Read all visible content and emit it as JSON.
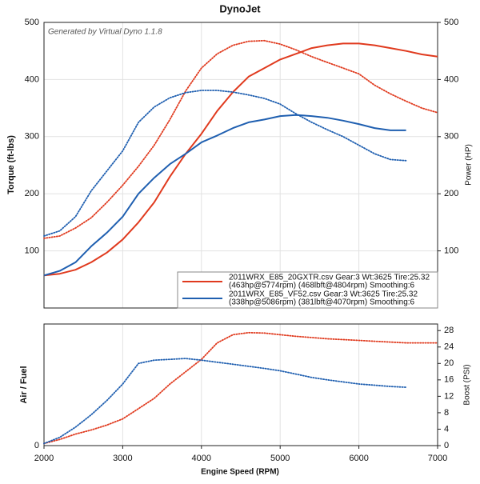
{
  "chart_data": [
    {
      "type": "line",
      "title": "DynoJet",
      "annotation": "Generated by Virtual Dyno 1.1.8",
      "ylabel": "Torque (ft-lbs)",
      "y2label": "Power (HP)",
      "xlim": [
        2000,
        7000
      ],
      "ylim": [
        0,
        500
      ],
      "yticks": [
        100,
        200,
        300,
        400,
        500
      ],
      "y2lim": [
        0,
        500
      ],
      "y2ticks": [
        100,
        200,
        300,
        400,
        500
      ],
      "grid": true,
      "legend_position": "lower right",
      "legend": [
        {
          "color": "#e03a1e",
          "lines": [
            "2011WRX_E85_20GXTR.csv Gear:3 Wt:3625 Tire:25.32",
            "(463hp@5774rpm) (468lbft@4804rpm) Smoothing:6"
          ]
        },
        {
          "color": "#1f5fb0",
          "lines": [
            "2011WRX_E85_VF52.csv Gear:3 Wt:3625 Tire:25.32",
            "(338hp@5086rpm) (381lbft@4070rpm) Smoothing:6"
          ]
        }
      ],
      "series": [
        {
          "color": "#e03a1e",
          "style": "solid",
          "axis": "y2",
          "x": [
            2000,
            2200,
            2400,
            2600,
            2800,
            3000,
            3200,
            3400,
            3600,
            3800,
            4000,
            4200,
            4400,
            4600,
            4800,
            5000,
            5200,
            5400,
            5600,
            5800,
            6000,
            6200,
            6400,
            6600,
            6800,
            7000
          ],
          "values": [
            57,
            60,
            67,
            80,
            97,
            120,
            150,
            185,
            230,
            270,
            305,
            345,
            378,
            405,
            420,
            435,
            445,
            455,
            460,
            463,
            463,
            460,
            455,
            450,
            444,
            440
          ]
        },
        {
          "color": "#e03a1e",
          "style": "dotted",
          "x": [
            2000,
            2200,
            2400,
            2600,
            2800,
            3000,
            3200,
            3400,
            3600,
            3800,
            4000,
            4200,
            4400,
            4600,
            4800,
            5000,
            5200,
            5400,
            5600,
            5800,
            6000,
            6200,
            6400,
            6600,
            6800,
            7000
          ],
          "values": [
            122,
            126,
            140,
            158,
            185,
            215,
            248,
            285,
            330,
            380,
            420,
            445,
            460,
            467,
            468,
            462,
            452,
            440,
            430,
            420,
            410,
            390,
            375,
            362,
            350,
            342
          ]
        },
        {
          "color": "#1f5fb0",
          "style": "solid",
          "axis": "y2",
          "x": [
            2000,
            2200,
            2400,
            2600,
            2800,
            3000,
            3200,
            3400,
            3600,
            3800,
            4000,
            4200,
            4400,
            4600,
            4800,
            5000,
            5200,
            5400,
            5600,
            5800,
            6000,
            6200,
            6400,
            6600
          ],
          "values": [
            57,
            65,
            80,
            108,
            132,
            160,
            200,
            228,
            252,
            270,
            290,
            302,
            315,
            325,
            330,
            336,
            338,
            336,
            333,
            328,
            322,
            315,
            311,
            311
          ]
        },
        {
          "color": "#1f5fb0",
          "style": "dotted",
          "x": [
            2000,
            2200,
            2400,
            2600,
            2800,
            3000,
            3200,
            3400,
            3600,
            3800,
            4000,
            4200,
            4400,
            4600,
            4800,
            5000,
            5200,
            5400,
            5600,
            5800,
            6000,
            6200,
            6400,
            6600
          ],
          "values": [
            126,
            135,
            160,
            205,
            240,
            275,
            325,
            352,
            368,
            377,
            381,
            381,
            378,
            373,
            367,
            357,
            340,
            325,
            312,
            300,
            285,
            270,
            260,
            258
          ]
        }
      ]
    },
    {
      "type": "line",
      "ylabel": "Air / Fuel",
      "y2label": "Boost (PSI)",
      "xlabel": "Engine Speed (RPM)",
      "xlim": [
        2000,
        7000
      ],
      "xticks": [
        2000,
        3000,
        4000,
        5000,
        6000,
        7000
      ],
      "ylim": [
        0,
        29.6
      ],
      "yticks": [
        0
      ],
      "y2lim": [
        0,
        29.6
      ],
      "y2ticks": [
        0,
        4,
        8,
        12,
        16,
        20,
        24,
        28
      ],
      "grid": true,
      "series": [
        {
          "color": "#e03a1e",
          "style": "dotted",
          "axis": "y2",
          "x": [
            2000,
            2200,
            2400,
            2600,
            2800,
            3000,
            3200,
            3400,
            3600,
            3800,
            4000,
            4200,
            4400,
            4600,
            4800,
            5000,
            5200,
            5400,
            5600,
            5800,
            6000,
            6200,
            6400,
            6600,
            6800,
            7000
          ],
          "values": [
            0.5,
            1.5,
            2.8,
            3.8,
            5,
            6.5,
            9,
            11.5,
            15,
            18,
            21,
            25,
            27,
            27.5,
            27.4,
            27,
            26.6,
            26.3,
            26,
            25.8,
            25.6,
            25.4,
            25.2,
            25,
            25,
            25
          ]
        },
        {
          "color": "#1f5fb0",
          "style": "dotted",
          "axis": "y2",
          "x": [
            2000,
            2200,
            2400,
            2600,
            2800,
            3000,
            3200,
            3400,
            3600,
            3800,
            4000,
            4200,
            4400,
            4600,
            4800,
            5000,
            5200,
            5400,
            5600,
            5800,
            6000,
            6200,
            6400,
            6600
          ],
          "values": [
            0.5,
            2,
            4.5,
            7.5,
            11,
            15,
            20,
            20.8,
            21,
            21.2,
            20.8,
            20.3,
            19.8,
            19.3,
            18.8,
            18.2,
            17.4,
            16.6,
            16,
            15.5,
            15,
            14.7,
            14.4,
            14.2
          ]
        }
      ]
    }
  ]
}
